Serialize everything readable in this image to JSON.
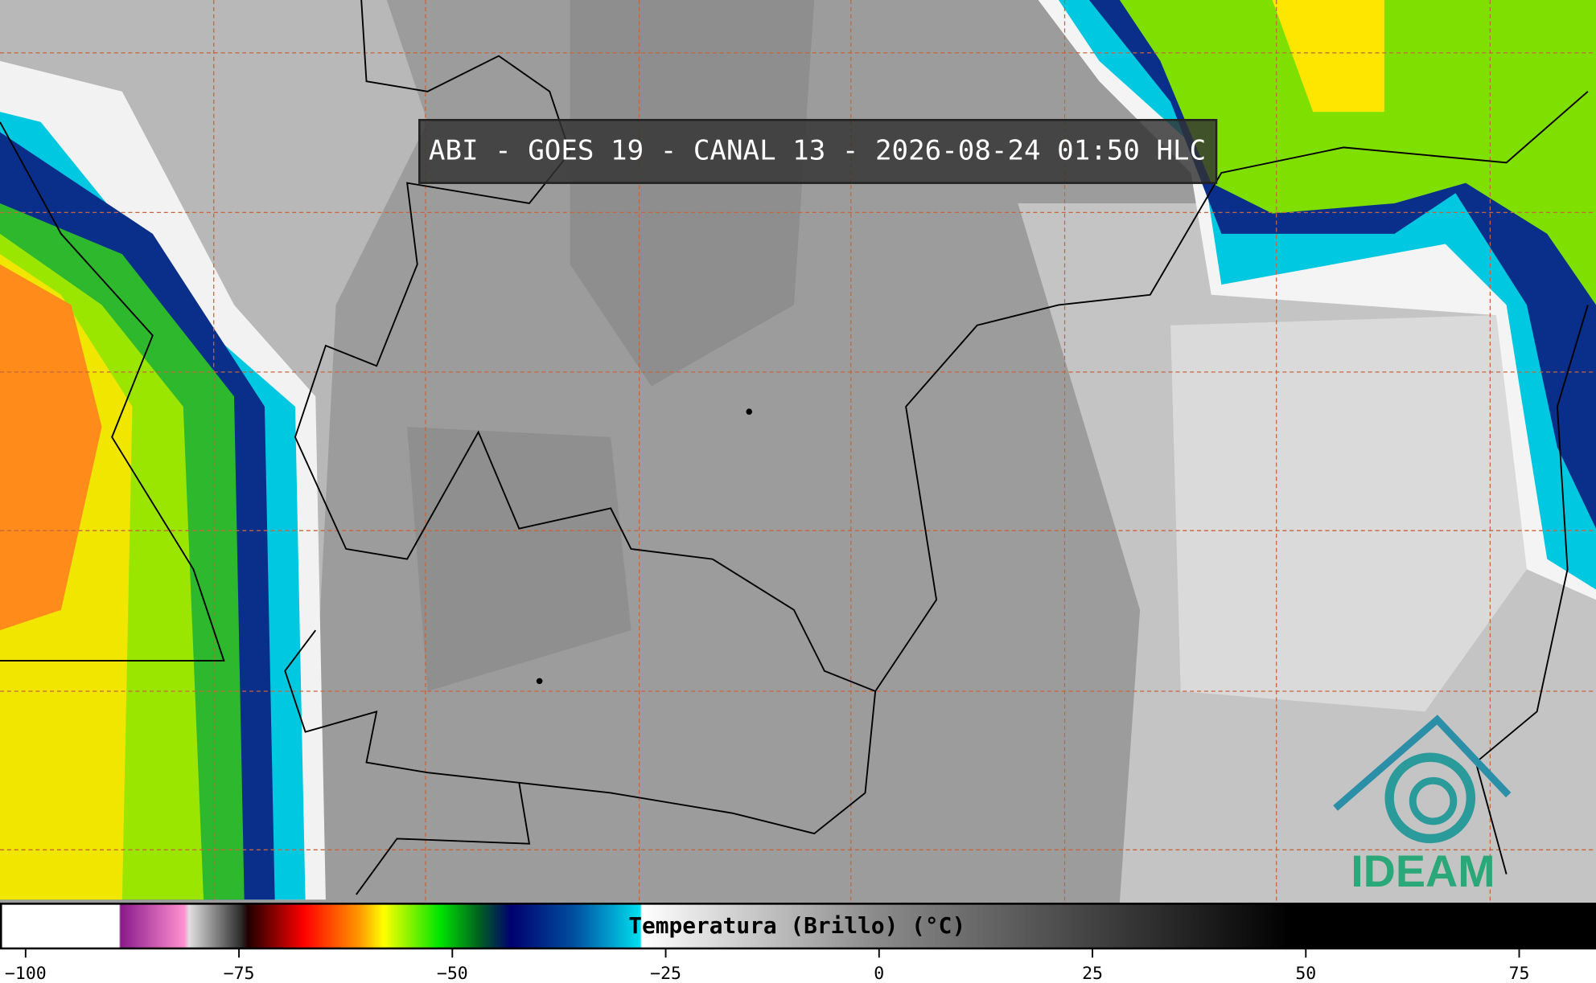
{
  "title": "ABI - GOES 19 - CANAL 13 - 2026-08-24 01:50 HLC",
  "colorbar": {
    "label": "Temperatura (Brillo) (°C)",
    "range": [
      -103,
      84
    ],
    "ticks": [
      {
        "value": -100,
        "label": "−100"
      },
      {
        "value": -75,
        "label": "−75"
      },
      {
        "value": -50,
        "label": "−50"
      },
      {
        "value": -25,
        "label": "−25"
      },
      0,
      25,
      50,
      75
    ]
  },
  "logo": "IDEAM"
}
